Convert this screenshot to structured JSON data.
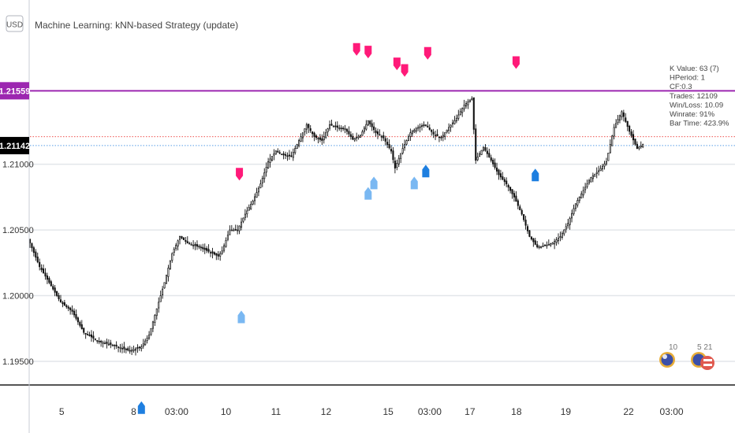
{
  "currency_label": "USD",
  "chart_data": {
    "type": "candlestick",
    "title": "Machine Learning: kNN-based Strategy (update)",
    "ylim": [
      1.1932,
      1.2225
    ],
    "y_ticks": [
      "1.19500",
      "1.20000",
      "1.20500",
      "1.21000"
    ],
    "x_ticks": [
      "5",
      "8",
      "03:00",
      "10",
      "11",
      "12",
      "15",
      "03:00",
      "17",
      "18",
      "19",
      "22",
      "03:00"
    ],
    "price_labels": {
      "resistance": {
        "value": "1.21559",
        "price": 1.21559,
        "color": "#9c27b0"
      },
      "current": {
        "value": "1.21142",
        "price": 1.21142,
        "color": "#000000"
      }
    },
    "reference_lines": [
      {
        "price": 1.21142,
        "color": "#5aa0e6",
        "style": "dotted"
      },
      {
        "price": 1.2121,
        "color": "#ef5350",
        "style": "dotted"
      }
    ],
    "close_path": [
      [
        0,
        1.204
      ],
      [
        5,
        1.2022
      ],
      [
        10,
        1.201
      ],
      [
        16,
        1.1995
      ],
      [
        22,
        1.1988
      ],
      [
        28,
        1.1972
      ],
      [
        36,
        1.1965
      ],
      [
        44,
        1.1962
      ],
      [
        52,
        1.1958
      ],
      [
        58,
        1.1961
      ],
      [
        62,
        1.197
      ],
      [
        66,
        1.199
      ],
      [
        70,
        1.201
      ],
      [
        74,
        1.2032
      ],
      [
        78,
        1.2045
      ],
      [
        82,
        1.204
      ],
      [
        88,
        1.2037
      ],
      [
        94,
        1.2033
      ],
      [
        98,
        1.203
      ],
      [
        100,
        1.2034
      ],
      [
        104,
        1.205
      ],
      [
        108,
        1.205
      ],
      [
        112,
        1.2062
      ],
      [
        116,
        1.2072
      ],
      [
        120,
        1.2085
      ],
      [
        124,
        1.2102
      ],
      [
        128,
        1.211
      ],
      [
        132,
        1.2107
      ],
      [
        136,
        1.2106
      ],
      [
        140,
        1.2118
      ],
      [
        144,
        1.213
      ],
      [
        148,
        1.2121
      ],
      [
        152,
        1.2118
      ],
      [
        156,
        1.213
      ],
      [
        160,
        1.2128
      ],
      [
        164,
        1.2127
      ],
      [
        168,
        1.2119
      ],
      [
        172,
        1.2122
      ],
      [
        176,
        1.2133
      ],
      [
        180,
        1.2124
      ],
      [
        184,
        1.212
      ],
      [
        188,
        1.211
      ],
      [
        190,
        1.2097
      ],
      [
        194,
        1.2112
      ],
      [
        198,
        1.2124
      ],
      [
        202,
        1.2128
      ],
      [
        206,
        1.213
      ],
      [
        210,
        1.2123
      ],
      [
        214,
        1.212
      ],
      [
        218,
        1.2128
      ],
      [
        222,
        1.2135
      ],
      [
        226,
        1.2145
      ],
      [
        230,
        1.215
      ],
      [
        232,
        1.2103
      ],
      [
        236,
        1.2113
      ],
      [
        240,
        1.2103
      ],
      [
        244,
        1.2092
      ],
      [
        248,
        1.2085
      ],
      [
        252,
        1.2075
      ],
      [
        256,
        1.2062
      ],
      [
        260,
        1.2045
      ],
      [
        264,
        1.2037
      ],
      [
        268,
        1.2038
      ],
      [
        272,
        1.204
      ],
      [
        276,
        1.2045
      ],
      [
        280,
        1.2055
      ],
      [
        284,
        1.207
      ],
      [
        288,
        1.208
      ],
      [
        292,
        1.209
      ],
      [
        296,
        1.2095
      ],
      [
        300,
        1.2102
      ],
      [
        304,
        1.2128
      ],
      [
        308,
        1.214
      ],
      [
        312,
        1.2125
      ],
      [
        316,
        1.2112
      ],
      [
        319,
        1.2115
      ]
    ],
    "xlim": [
      0,
      330
    ],
    "sell_signals": [
      {
        "x": 109,
        "price": 1.209
      },
      {
        "x": 170,
        "price": 1.2185
      },
      {
        "x": 176,
        "price": 1.2183
      },
      {
        "x": 191,
        "price": 1.2174
      },
      {
        "x": 195,
        "price": 1.2169
      },
      {
        "x": 207,
        "price": 1.2182
      },
      {
        "x": 253,
        "price": 1.2175
      }
    ],
    "buy_signals": [
      {
        "x": 58,
        "price": 1.1916,
        "shade": "dark"
      },
      {
        "x": 110,
        "price": 1.1985,
        "shade": "light"
      },
      {
        "x": 176,
        "price": 1.2079,
        "shade": "light"
      },
      {
        "x": 179,
        "price": 1.2087,
        "shade": "light"
      },
      {
        "x": 200,
        "price": 1.2087,
        "shade": "light"
      },
      {
        "x": 206,
        "price": 1.2096,
        "shade": "dark"
      },
      {
        "x": 263,
        "price": 1.2093,
        "shade": "dark"
      }
    ],
    "stats": [
      "K Value: 63 (7)",
      "HPeriod: 1",
      "CF:0.3",
      "Trades: 12109",
      "Win/Loss: 10.09",
      "Winrate: 91%",
      "Bar Time: 423.9%"
    ]
  },
  "badges": [
    {
      "caption": "10"
    },
    {
      "caption": "5 21"
    }
  ]
}
